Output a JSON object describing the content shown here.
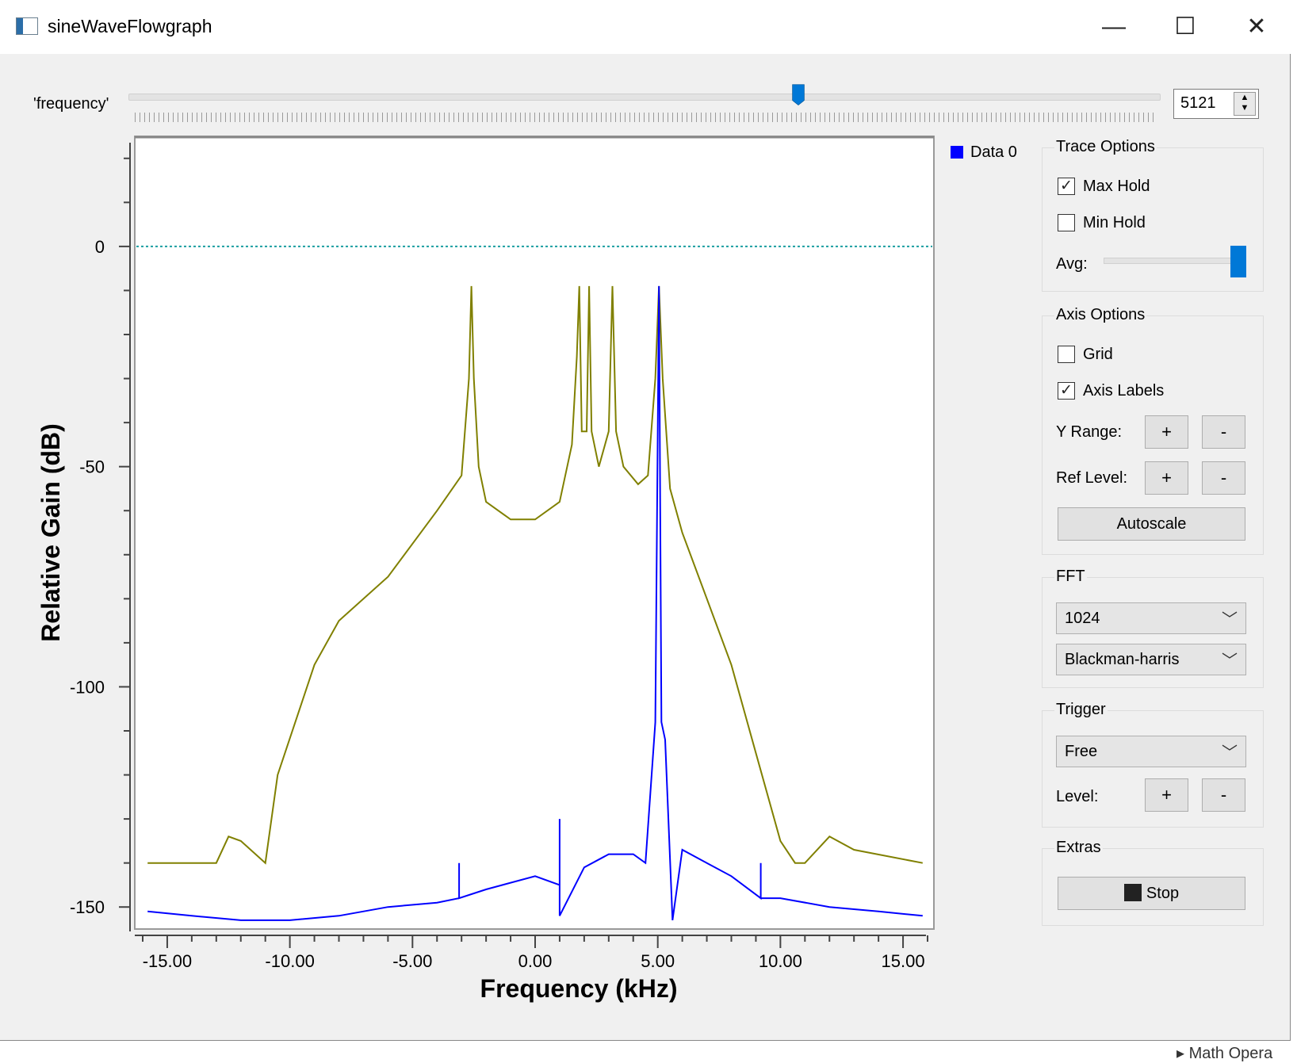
{
  "window": {
    "title": "sineWaveFlowgraph",
    "minimize_glyph": "—",
    "maximize_glyph": "☐",
    "close_glyph": "✕"
  },
  "frequency_control": {
    "label": "'frequency'",
    "value": "5121",
    "slider_fraction": 0.65
  },
  "legend": {
    "label": "Data 0",
    "color": "#0000ff"
  },
  "trace_options": {
    "title": "Trace Options",
    "max_hold_label": "Max Hold",
    "max_hold_checked": true,
    "min_hold_label": "Min Hold",
    "min_hold_checked": false,
    "avg_label": "Avg:",
    "avg_fraction": 1.0
  },
  "axis_options": {
    "title": "Axis Options",
    "grid_label": "Grid",
    "grid_checked": false,
    "axis_labels_label": "Axis Labels",
    "axis_labels_checked": true,
    "y_range_label": "Y Range:",
    "ref_level_label": "Ref Level:",
    "plus": "+",
    "minus": "-",
    "autoscale_label": "Autoscale"
  },
  "fft": {
    "title": "FFT",
    "size_selected": "1024",
    "window_selected": "Blackman-harris"
  },
  "trigger": {
    "title": "Trigger",
    "mode_selected": "Free",
    "level_label": "Level:",
    "plus": "+",
    "minus": "-"
  },
  "extras": {
    "title": "Extras",
    "stop_label": "Stop"
  },
  "taskbar_hint": "▸ Math Opera",
  "chart_data": {
    "type": "line",
    "xlabel": "Frequency (kHz)",
    "ylabel": "Relative Gain (dB)",
    "xlim": [
      -16,
      16
    ],
    "ylim": [
      -155,
      25
    ],
    "x_ticks": [
      "-15.00",
      "-10.00",
      "-5.00",
      "0.00",
      "5.00",
      "10.00",
      "15.00"
    ],
    "y_ticks": [
      "0",
      "-50",
      "-100",
      "-150"
    ],
    "reference_line_db": 0,
    "grid": false,
    "series": [
      {
        "name": "Data 0",
        "color": "#0000ff",
        "x": [
          -15.8,
          -14,
          -12,
          -10,
          -8,
          -6,
          -4,
          -3.1,
          -3.1,
          -3.1,
          -2,
          0,
          1.0,
          1.0,
          1.0,
          2,
          3,
          4,
          4.5,
          4.9,
          5.05,
          5.15,
          5.3,
          5.6,
          6,
          7,
          8,
          9.2,
          9.2,
          9.2,
          10,
          12,
          14,
          15.8
        ],
        "y": [
          -151,
          -152,
          -153,
          -153,
          -152,
          -150,
          -149,
          -148,
          -140,
          -148,
          -146,
          -143,
          -145,
          -130,
          -152,
          -141,
          -138,
          -138,
          -140,
          -108,
          -9,
          -108,
          -112,
          -153,
          -137,
          -140,
          -143,
          -148,
          -140,
          -148,
          -148,
          -150,
          -151,
          -152
        ]
      },
      {
        "name": "",
        "color": "#808000",
        "x": [
          -15.8,
          -13,
          -12.5,
          -12,
          -11,
          -11,
          -10.5,
          -9,
          -8,
          -6,
          -4,
          -3,
          -2.7,
          -2.6,
          -2.5,
          -2.3,
          -2,
          -1,
          0,
          1,
          1.5,
          1.7,
          1.8,
          1.9,
          2.1,
          2.2,
          2.3,
          2.6,
          3.0,
          3.15,
          3.3,
          3.6,
          4.2,
          4.6,
          4.9,
          5.05,
          5.2,
          5.5,
          6,
          7,
          8,
          9,
          10,
          10.6,
          11,
          11,
          12,
          13,
          15.8
        ],
        "y": [
          -140,
          -140,
          -134,
          -135,
          -140,
          -140,
          -120,
          -95,
          -85,
          -75,
          -60,
          -52,
          -30,
          -9,
          -30,
          -50,
          -58,
          -62,
          -62,
          -58,
          -45,
          -25,
          -9,
          -42,
          -42,
          -9,
          -42,
          -50,
          -42,
          -9,
          -42,
          -50,
          -54,
          -52,
          -30,
          -9,
          -30,
          -55,
          -65,
          -80,
          -95,
          -115,
          -135,
          -140,
          -140,
          -140,
          -134,
          -137,
          -140
        ]
      }
    ]
  }
}
